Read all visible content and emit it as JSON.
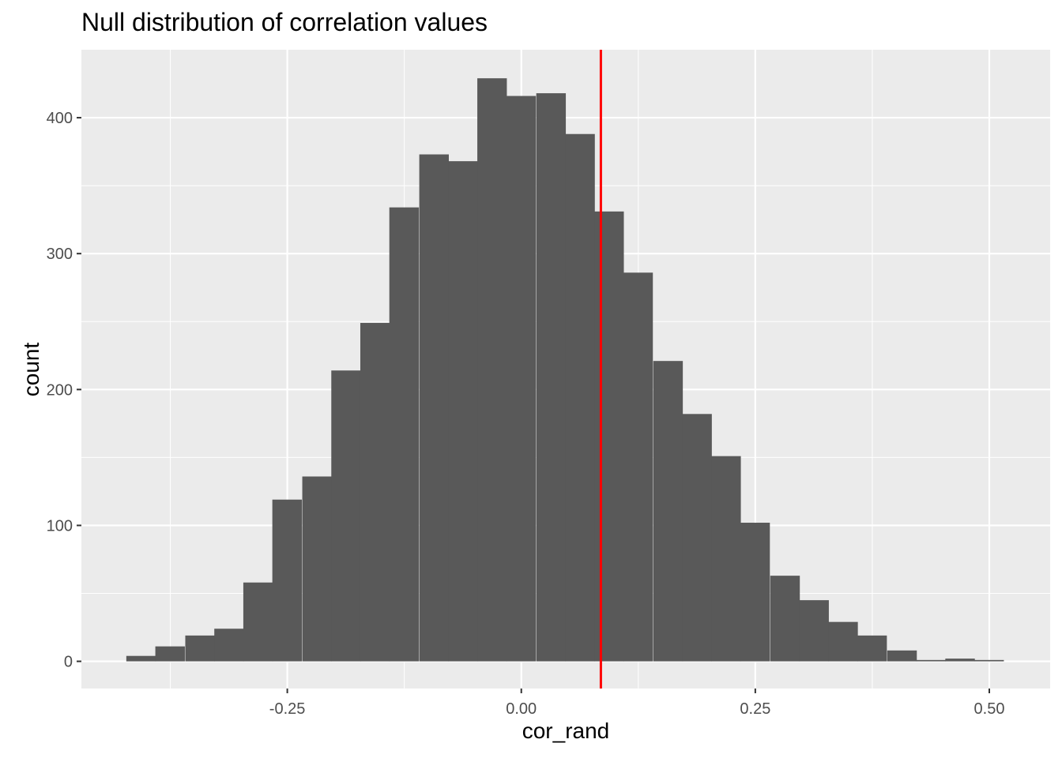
{
  "chart_data": {
    "type": "bar",
    "title": "Null distribution of correlation values",
    "xlabel": "cor_rand",
    "ylabel": "count",
    "xlim": [
      -0.47,
      0.565
    ],
    "ylim": [
      -20,
      450
    ],
    "x_ticks": [
      -0.25,
      0.0,
      0.25,
      0.5
    ],
    "x_tick_labels": [
      "-0.25",
      "0.00",
      "0.25",
      "0.50"
    ],
    "y_ticks": [
      0,
      100,
      200,
      300,
      400
    ],
    "y_tick_labels": [
      "0",
      "100",
      "200",
      "300",
      "400"
    ],
    "grid": true,
    "bin_width": 0.0313,
    "bins_start": [
      -0.422,
      -0.391,
      -0.359,
      -0.328,
      -0.297,
      -0.266,
      -0.234,
      -0.203,
      -0.172,
      -0.141,
      -0.109,
      -0.078,
      -0.047,
      -0.016,
      0.016,
      0.047,
      0.078,
      0.109,
      0.141,
      0.172,
      0.203,
      0.234,
      0.266,
      0.297,
      0.328,
      0.359,
      0.391,
      0.422,
      0.453,
      0.484
    ],
    "values": [
      4,
      11,
      19,
      24,
      58,
      119,
      136,
      214,
      249,
      334,
      373,
      368,
      429,
      416,
      418,
      388,
      331,
      286,
      221,
      182,
      151,
      102,
      63,
      45,
      29,
      19,
      8,
      1,
      2,
      1
    ],
    "reference_line": {
      "x": 0.085,
      "color": "#ff0000"
    },
    "bar_color": "#595959",
    "panel_color": "#ebebeb",
    "grid_color": "#ffffff"
  }
}
